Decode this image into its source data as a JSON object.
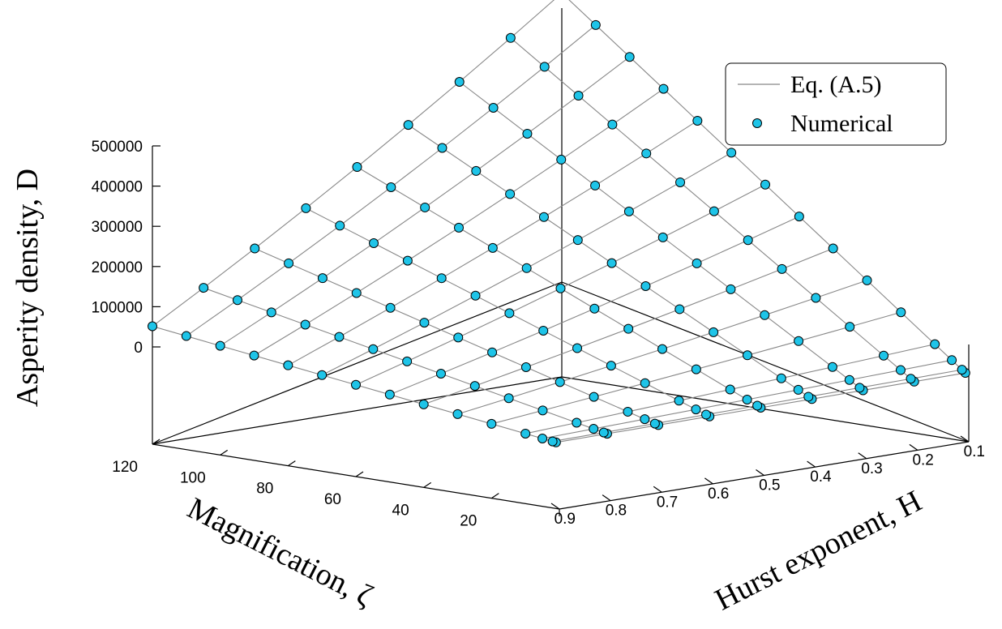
{
  "chart_data": {
    "type": "surface3d",
    "ylabel": "Asperity density, D",
    "xlabel": "Magnification, ζ",
    "hlabel": "Hurst exponent, H",
    "z_ticks": [
      "0",
      "100000",
      "200000",
      "300000",
      "400000",
      "500000"
    ],
    "zeta_ticks": [
      "20",
      "40",
      "60",
      "80",
      "100",
      "120"
    ],
    "h_ticks": [
      "0.1",
      "0.2",
      "0.3",
      "0.4",
      "0.5",
      "0.6",
      "0.7",
      "0.8",
      "0.9"
    ],
    "legend": {
      "line_label": "Eq. (A.5)",
      "marker_label": "Numerical",
      "position": "top-right"
    },
    "colors": {
      "marker_fill": "#1ec4e8",
      "line": "#888888",
      "axes": "#000000"
    },
    "zeta_values": [
      1,
      2,
      5,
      10,
      20,
      30,
      40,
      50,
      60,
      70,
      80,
      90,
      100,
      110,
      120
    ],
    "H_values": [
      0.1,
      0.2,
      0.3,
      0.4,
      0.5,
      0.6,
      0.7,
      0.8,
      0.9
    ],
    "D_max_at_H0_1_zeta120": 845000,
    "D_at_H0_9_zeta120": 130000,
    "D_at_H0_1_zeta1": 0
  }
}
